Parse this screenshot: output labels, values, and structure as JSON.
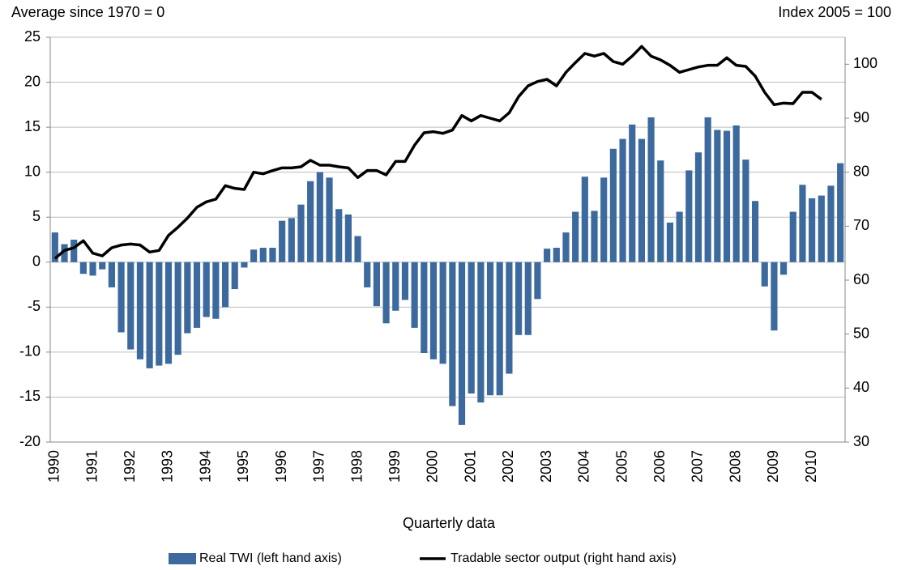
{
  "chart_data": {
    "type": "bar_line",
    "title_left": "Average since 1970 = 0",
    "title_right": "Index 2005 = 100",
    "x_label": "Quarterly data",
    "categories": [
      "1990",
      null,
      null,
      null,
      "1991",
      null,
      null,
      null,
      "1992",
      null,
      null,
      null,
      "1993",
      null,
      null,
      null,
      "1994",
      null,
      null,
      null,
      "1995",
      null,
      null,
      null,
      "1996",
      null,
      null,
      null,
      "1997",
      null,
      null,
      null,
      "1998",
      null,
      null,
      null,
      "1999",
      null,
      null,
      null,
      "2000",
      null,
      null,
      null,
      "2001",
      null,
      null,
      null,
      "2002",
      null,
      null,
      null,
      "2003",
      null,
      null,
      null,
      "2004",
      null,
      null,
      null,
      "2005",
      null,
      null,
      null,
      "2006",
      null,
      null,
      null,
      "2007",
      null,
      null,
      null,
      "2008",
      null,
      null,
      null,
      "2009",
      null,
      null,
      null,
      "2010",
      null,
      null,
      null
    ],
    "series": [
      {
        "name": "Real TWI (left hand axis)",
        "type": "bar",
        "color": "#3d6a9e",
        "values": [
          3.3,
          2.0,
          2.5,
          -1.3,
          -1.5,
          -0.8,
          -2.8,
          -7.8,
          -9.7,
          -10.8,
          -11.8,
          -11.5,
          -11.3,
          -10.3,
          -7.9,
          -7.3,
          -6.1,
          -6.3,
          -5.0,
          -3.0,
          -0.6,
          1.4,
          1.6,
          1.6,
          4.6,
          4.9,
          6.4,
          9.0,
          10.0,
          9.4,
          5.9,
          5.3,
          2.9,
          -2.8,
          -4.9,
          -6.8,
          -5.4,
          -4.2,
          -7.3,
          -10.1,
          -10.8,
          -11.3,
          -16.0,
          -18.1,
          -14.6,
          -15.6,
          -14.8,
          -14.8,
          -12.4,
          -8.1,
          -8.1,
          -4.1,
          1.5,
          1.6,
          3.3,
          5.6,
          9.5,
          5.7,
          9.4,
          12.6,
          13.7,
          15.3,
          13.7,
          16.1,
          11.3,
          4.4,
          5.6,
          10.2,
          12.2,
          16.1,
          14.7,
          14.6,
          15.2,
          11.4,
          6.8,
          -2.7,
          -7.6,
          -1.4,
          5.6,
          8.6,
          7.1,
          7.4,
          8.5,
          11.0
        ]
      },
      {
        "name": "Tradable sector output (right hand axis)",
        "type": "line",
        "axis": "y2",
        "color": "#000000",
        "values": [
          64,
          65.5,
          66,
          67.3,
          65,
          64.5,
          66,
          66.5,
          66.7,
          66.5,
          65.2,
          65.5,
          68.3,
          69.8,
          71.5,
          73.5,
          74.5,
          75,
          77.5,
          77,
          76.8,
          80,
          79.7,
          80.3,
          80.8,
          80.8,
          81,
          82.2,
          81.3,
          81.3,
          81,
          80.8,
          79,
          80.3,
          80.3,
          79.5,
          82,
          82,
          85,
          87.3,
          87.5,
          87.2,
          87.8,
          90.5,
          89.5,
          90.5,
          90,
          89.5,
          91,
          94,
          96,
          96.8,
          97.2,
          96,
          98.5,
          100.3,
          102,
          101.5,
          102,
          100.5,
          100,
          101.5,
          103.3,
          101.5,
          100.8,
          99.8,
          98.5,
          99,
          99.5,
          99.8,
          99.8,
          101.2,
          99.8,
          99.6,
          97.8,
          94.8,
          92.5,
          92.8,
          92.7,
          94.8,
          94.8,
          93.5,
          null,
          null
        ]
      }
    ],
    "ylim": [
      -20,
      25
    ],
    "yticks": [
      -20,
      -15,
      -10,
      -5,
      0,
      5,
      10,
      15,
      20,
      25
    ],
    "y2lim": [
      30,
      105
    ],
    "y2ticks": [
      30,
      40,
      50,
      60,
      70,
      80,
      90,
      100
    ],
    "grid": true,
    "legend": "bottom"
  }
}
